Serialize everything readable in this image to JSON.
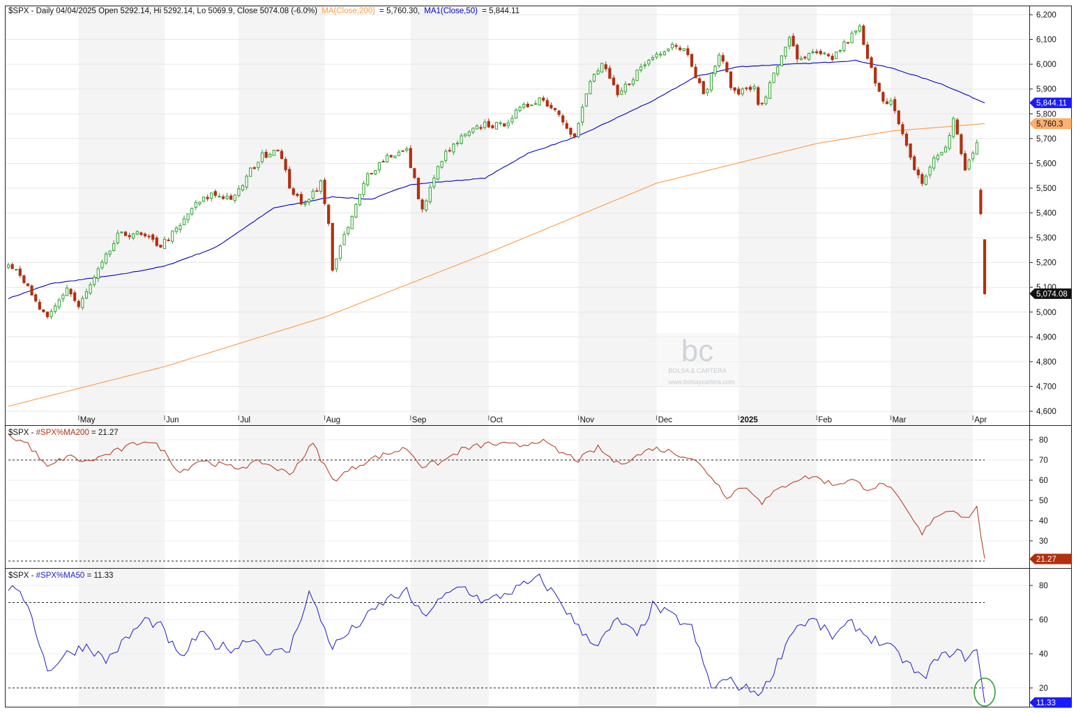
{
  "header": {
    "title": "$SPX - Daily 04/04/2025 Open 5292.14, Hi 5292.14, Lo 5069.9, Close 5074.08 (-6.0%)",
    "ma200_label": "MA(Close,200)",
    "ma200_value": "= 5,760.30,",
    "ma50_label": "MA1(Close,50)",
    "ma50_value": "= 5,844.11"
  },
  "watermark": {
    "line1": "BOLSA & CARTERA",
    "line2": "www.bolsaycartera.com"
  },
  "months": [
    "May",
    "Jun",
    "Jul",
    "Aug",
    "Sep",
    "Oct",
    "Nov",
    "Dec",
    "2025",
    "Feb",
    "Mar",
    "Apr"
  ],
  "tags": {
    "ma50": "5,844.11",
    "ma200": "5,760.3",
    "close": "5,074.08",
    "pct200": "21.27",
    "pct50": "11.33"
  },
  "panel2": {
    "prefix": "$SPX - ",
    "label": "#SPX%MA200",
    "value": " = 21.27"
  },
  "panel3": {
    "prefix": "$SPX - ",
    "label": "#SPX%MA50",
    "value": " = 11.33"
  },
  "colors": {
    "up": "#2ca02c",
    "down": "#b03010",
    "ma50": "#0000c8",
    "ma200": "#ff9940",
    "pct200": "#b03010",
    "pct50": "#1a1acd",
    "circle": "#2ca02c"
  },
  "chart_data": [
    {
      "type": "candlestick",
      "title": "$SPX - Daily 04/04/2025",
      "ylim": [
        4560,
        6240
      ],
      "yticks": [
        4600,
        4700,
        4800,
        4900,
        5000,
        5100,
        5200,
        5300,
        5400,
        5500,
        5600,
        5700,
        5800,
        5900,
        6000,
        6100,
        6200
      ],
      "x_month_labels": [
        "May",
        "Jun",
        "Jul",
        "Aug",
        "Sep",
        "Oct",
        "Nov",
        "Dec",
        "2025",
        "Feb",
        "Mar",
        "Apr"
      ],
      "ohlc_close_anchors": [
        [
          "2024-04-05",
          5205
        ],
        [
          "2024-04-10",
          5160
        ],
        [
          "2024-04-15",
          5060
        ],
        [
          "2024-04-19",
          4967
        ],
        [
          "2024-04-26",
          5100
        ],
        [
          "2024-05-01",
          5020
        ],
        [
          "2024-05-10",
          5220
        ],
        [
          "2024-05-15",
          5305
        ],
        [
          "2024-05-21",
          5320
        ],
        [
          "2024-05-24",
          5300
        ],
        [
          "2024-05-31",
          5270
        ],
        [
          "2024-06-07",
          5345
        ],
        [
          "2024-06-12",
          5420
        ],
        [
          "2024-06-20",
          5475
        ],
        [
          "2024-06-28",
          5460
        ],
        [
          "2024-07-05",
          5570
        ],
        [
          "2024-07-10",
          5630
        ],
        [
          "2024-07-16",
          5665
        ],
        [
          "2024-07-19",
          5510
        ],
        [
          "2024-07-24",
          5430
        ],
        [
          "2024-07-31",
          5520
        ],
        [
          "2024-08-02",
          5350
        ],
        [
          "2024-08-05",
          5180
        ],
        [
          "2024-08-09",
          5340
        ],
        [
          "2024-08-16",
          5555
        ],
        [
          "2024-08-23",
          5630
        ],
        [
          "2024-08-30",
          5650
        ],
        [
          "2024-09-06",
          5410
        ],
        [
          "2024-09-13",
          5620
        ],
        [
          "2024-09-20",
          5700
        ],
        [
          "2024-09-30",
          5760
        ],
        [
          "2024-10-04",
          5750
        ],
        [
          "2024-10-11",
          5815
        ],
        [
          "2024-10-18",
          5865
        ],
        [
          "2024-10-25",
          5805
        ],
        [
          "2024-10-31",
          5705
        ],
        [
          "2024-11-06",
          5930
        ],
        [
          "2024-11-11",
          6000
        ],
        [
          "2024-11-15",
          5870
        ],
        [
          "2024-11-22",
          5970
        ],
        [
          "2024-11-29",
          6030
        ],
        [
          "2024-12-06",
          6085
        ],
        [
          "2024-12-12",
          6050
        ],
        [
          "2024-12-18",
          5870
        ],
        [
          "2024-12-24",
          6040
        ],
        [
          "2024-12-31",
          5880
        ],
        [
          "2025-01-08",
          5920
        ],
        [
          "2025-01-10",
          5830
        ],
        [
          "2025-01-13",
          5835
        ],
        [
          "2025-01-17",
          5995
        ],
        [
          "2025-01-23",
          6115
        ],
        [
          "2025-01-27",
          6010
        ],
        [
          "2025-01-31",
          6040
        ],
        [
          "2025-02-07",
          6025
        ],
        [
          "2025-02-14",
          6115
        ],
        [
          "2025-02-19",
          6145
        ],
        [
          "2025-02-21",
          6015
        ],
        [
          "2025-02-27",
          5860
        ],
        [
          "2025-03-03",
          5850
        ],
        [
          "2025-03-10",
          5615
        ],
        [
          "2025-03-13",
          5520
        ],
        [
          "2025-03-18",
          5615
        ],
        [
          "2025-03-21",
          5665
        ],
        [
          "2025-03-25",
          5775
        ],
        [
          "2025-03-28",
          5580
        ],
        [
          "2025-03-31",
          5610
        ],
        [
          "2025-04-02",
          5670
        ],
        [
          "2025-04-03",
          5397
        ],
        [
          "2025-04-04",
          5074
        ]
      ],
      "last_bars": [
        {
          "date": "2025-04-03",
          "open": 5492,
          "high": 5500,
          "low": 5390,
          "close": 5397
        },
        {
          "date": "2025-04-04",
          "open": 5292.14,
          "high": 5292.14,
          "low": 5069.9,
          "close": 5074.08
        }
      ],
      "series": [
        {
          "name": "MA(Close,200)",
          "last": 5760.3,
          "anchors": [
            [
              "2024-04-05",
              4620
            ],
            [
              "2024-06-03",
              4780
            ],
            [
              "2024-08-01",
              4980
            ],
            [
              "2024-10-01",
              5240
            ],
            [
              "2024-12-02",
              5520
            ],
            [
              "2025-02-03",
              5680
            ],
            [
              "2025-03-03",
              5730
            ],
            [
              "2025-04-04",
              5760.3
            ]
          ]
        },
        {
          "name": "MA1(Close,50)",
          "last": 5844.11,
          "anchors": [
            [
              "2024-04-05",
              5055
            ],
            [
              "2024-04-22",
              5115
            ],
            [
              "2024-05-15",
              5150
            ],
            [
              "2024-06-03",
              5185
            ],
            [
              "2024-06-21",
              5260
            ],
            [
              "2024-07-15",
              5420
            ],
            [
              "2024-08-05",
              5465
            ],
            [
              "2024-08-19",
              5455
            ],
            [
              "2024-09-03",
              5515
            ],
            [
              "2024-09-30",
              5540
            ],
            [
              "2024-10-15",
              5640
            ],
            [
              "2024-11-01",
              5710
            ],
            [
              "2024-12-02",
              5860
            ],
            [
              "2024-12-16",
              5950
            ],
            [
              "2025-01-02",
              5990
            ],
            [
              "2025-02-03",
              6005
            ],
            [
              "2025-02-18",
              6015
            ],
            [
              "2025-03-03",
              5985
            ],
            [
              "2025-03-20",
              5920
            ],
            [
              "2025-04-04",
              5844.11
            ]
          ]
        }
      ]
    },
    {
      "type": "line",
      "title": "$SPX - #SPX%MA200 = 21.27",
      "ylim": [
        20,
        85
      ],
      "yticks": [
        30,
        40,
        50,
        60,
        70,
        80
      ],
      "reference_lines": [
        70,
        20
      ],
      "series": [
        {
          "name": "#SPX%MA200",
          "last": 21.27,
          "anchors": [
            [
              "2024-04-05",
              82
            ],
            [
              "2024-04-12",
              78
            ],
            [
              "2024-04-19",
              66
            ],
            [
              "2024-04-26",
              72
            ],
            [
              "2024-05-03",
              69
            ],
            [
              "2024-05-17",
              76
            ],
            [
              "2024-05-24",
              80
            ],
            [
              "2024-05-31",
              76
            ],
            [
              "2024-06-07",
              64
            ],
            [
              "2024-06-14",
              70
            ],
            [
              "2024-06-28",
              66
            ],
            [
              "2024-07-10",
              69
            ],
            [
              "2024-07-19",
              63
            ],
            [
              "2024-07-29",
              78
            ],
            [
              "2024-08-05",
              60
            ],
            [
              "2024-08-16",
              70
            ],
            [
              "2024-08-30",
              76
            ],
            [
              "2024-09-06",
              67
            ],
            [
              "2024-09-13",
              69
            ],
            [
              "2024-09-20",
              75
            ],
            [
              "2024-10-01",
              78
            ],
            [
              "2024-10-11",
              77
            ],
            [
              "2024-10-18",
              80
            ],
            [
              "2024-10-25",
              74
            ],
            [
              "2024-11-01",
              70
            ],
            [
              "2024-11-08",
              76
            ],
            [
              "2024-11-15",
              68
            ],
            [
              "2024-11-22",
              72
            ],
            [
              "2024-11-29",
              76
            ],
            [
              "2024-12-06",
              74
            ],
            [
              "2024-12-13",
              71
            ],
            [
              "2024-12-20",
              62
            ],
            [
              "2024-12-27",
              52
            ],
            [
              "2025-01-03",
              57
            ],
            [
              "2025-01-10",
              52
            ],
            [
              "2025-01-13",
              49
            ],
            [
              "2025-01-17",
              55
            ],
            [
              "2025-01-24",
              60
            ],
            [
              "2025-01-31",
              62
            ],
            [
              "2025-02-07",
              58
            ],
            [
              "2025-02-14",
              60
            ],
            [
              "2025-02-21",
              56
            ],
            [
              "2025-02-28",
              58
            ],
            [
              "2025-03-07",
              45
            ],
            [
              "2025-03-13",
              33
            ],
            [
              "2025-03-18",
              42
            ],
            [
              "2025-03-25",
              46
            ],
            [
              "2025-03-28",
              41
            ],
            [
              "2025-04-02",
              46
            ],
            [
              "2025-04-04",
              21.27
            ]
          ]
        }
      ]
    },
    {
      "type": "line",
      "title": "$SPX - #SPX%MA50 = 11.33",
      "ylim": [
        8,
        88
      ],
      "yticks": [
        20,
        40,
        60,
        80
      ],
      "reference_lines": [
        70,
        20
      ],
      "series": [
        {
          "name": "#SPX%MA50",
          "last": 11.33,
          "anchors": [
            [
              "2024-04-05",
              79
            ],
            [
              "2024-04-12",
              70
            ],
            [
              "2024-04-19",
              30
            ],
            [
              "2024-04-26",
              40
            ],
            [
              "2024-05-03",
              45
            ],
            [
              "2024-05-10",
              36
            ],
            [
              "2024-05-24",
              60
            ],
            [
              "2024-05-31",
              56
            ],
            [
              "2024-06-07",
              37
            ],
            [
              "2024-06-14",
              52
            ],
            [
              "2024-06-21",
              45
            ],
            [
              "2024-06-28",
              43
            ],
            [
              "2024-07-05",
              50
            ],
            [
              "2024-07-12",
              40
            ],
            [
              "2024-07-19",
              42
            ],
            [
              "2024-07-26",
              76
            ],
            [
              "2024-08-05",
              44
            ],
            [
              "2024-08-16",
              62
            ],
            [
              "2024-08-23",
              72
            ],
            [
              "2024-08-30",
              76
            ],
            [
              "2024-09-06",
              62
            ],
            [
              "2024-09-13",
              72
            ],
            [
              "2024-09-20",
              80
            ],
            [
              "2024-09-30",
              70
            ],
            [
              "2024-10-07",
              75
            ],
            [
              "2024-10-18",
              84
            ],
            [
              "2024-10-25",
              72
            ],
            [
              "2024-11-01",
              55
            ],
            [
              "2024-11-08",
              45
            ],
            [
              "2024-11-15",
              60
            ],
            [
              "2024-11-22",
              50
            ],
            [
              "2024-11-29",
              68
            ],
            [
              "2024-12-06",
              62
            ],
            [
              "2024-12-13",
              55
            ],
            [
              "2024-12-20",
              20
            ],
            [
              "2024-12-27",
              25
            ],
            [
              "2025-01-03",
              20
            ],
            [
              "2025-01-10",
              18
            ],
            [
              "2025-01-13",
              17
            ],
            [
              "2025-01-17",
              35
            ],
            [
              "2025-01-24",
              55
            ],
            [
              "2025-01-31",
              60
            ],
            [
              "2025-02-07",
              50
            ],
            [
              "2025-02-14",
              58
            ],
            [
              "2025-02-21",
              50
            ],
            [
              "2025-02-28",
              45
            ],
            [
              "2025-03-07",
              35
            ],
            [
              "2025-03-13",
              25
            ],
            [
              "2025-03-18",
              35
            ],
            [
              "2025-03-25",
              42
            ],
            [
              "2025-03-28",
              38
            ],
            [
              "2025-04-02",
              42
            ],
            [
              "2025-04-04",
              11.33
            ]
          ]
        }
      ]
    }
  ]
}
